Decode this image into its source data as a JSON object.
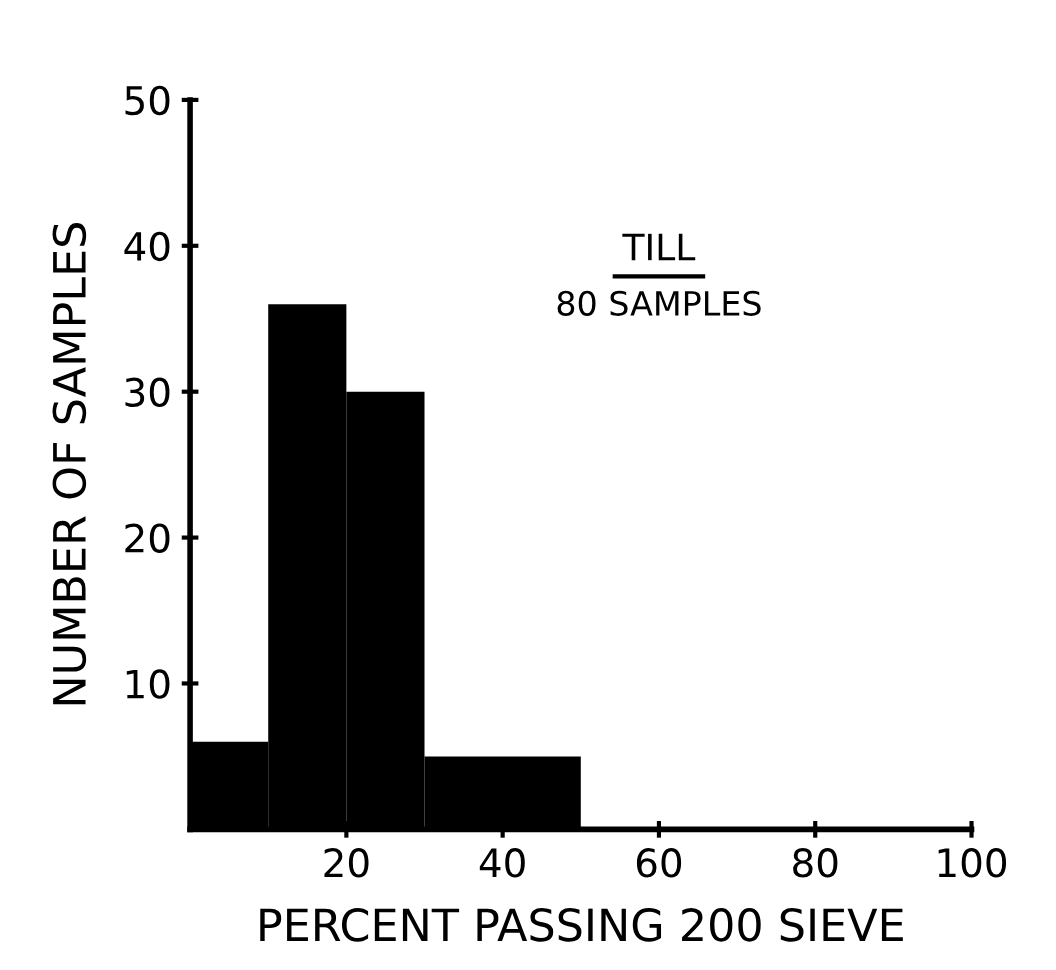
{
  "chart_data": {
    "type": "histogram",
    "xlabel": "PERCENT PASSING 200 SIEVE",
    "ylabel": "NUMBER OF SAMPLES",
    "bins": [
      0,
      10,
      20,
      30,
      50
    ],
    "values": [
      6,
      36,
      30,
      5
    ],
    "color": "#000000",
    "xlim": [
      0,
      100
    ],
    "xticks": [
      20,
      40,
      60,
      80,
      100
    ],
    "ylim": [
      0,
      50
    ],
    "yticks": [
      10,
      20,
      30,
      40,
      50
    ],
    "grid": false,
    "legend": false,
    "annotations": [
      "TILL",
      "80 SAMPLES"
    ]
  }
}
